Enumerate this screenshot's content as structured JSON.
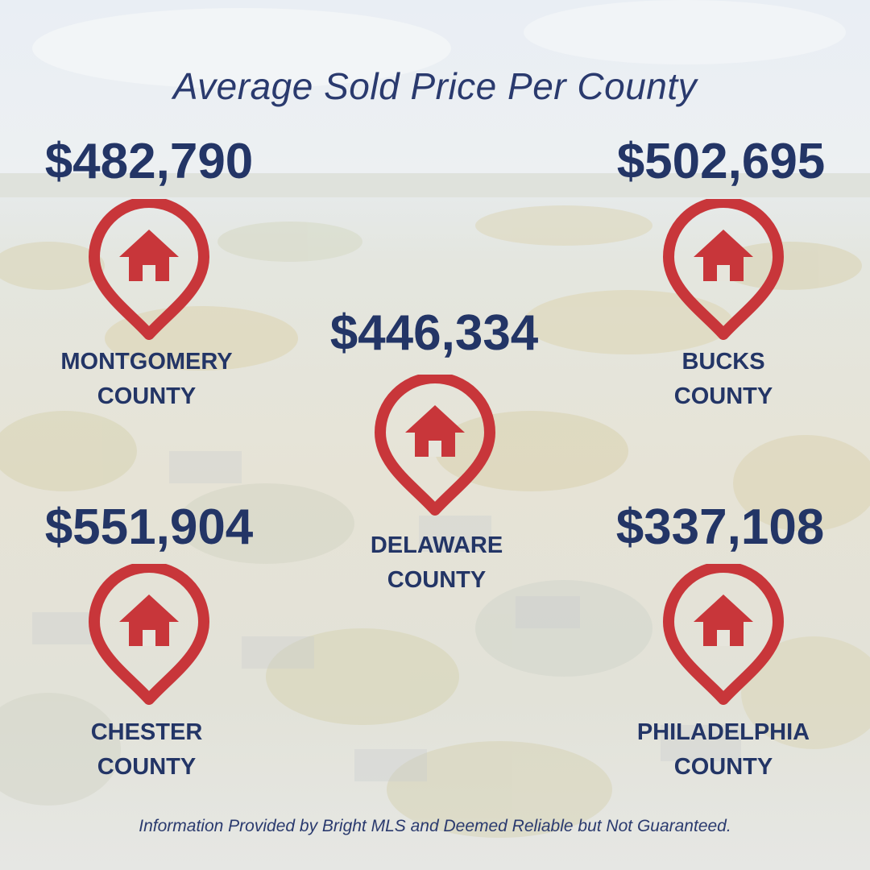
{
  "title": "Average Sold Price Per County",
  "counties": [
    {
      "price": "$482,790",
      "name_line1": "MONTGOMERY",
      "name_line2": "COUNTY"
    },
    {
      "price": "$502,695",
      "name_line1": "BUCKS",
      "name_line2": "COUNTY"
    },
    {
      "price": "$446,334",
      "name_line1": "DELAWARE",
      "name_line2": "COUNTY"
    },
    {
      "price": "$551,904",
      "name_line1": "CHESTER",
      "name_line2": "COUNTY"
    },
    {
      "price": "$337,108",
      "name_line1": "PHILADELPHIA",
      "name_line2": "COUNTY"
    }
  ],
  "footer": "Information Provided by Bright MLS and Deemed Reliable but Not Guaranteed.",
  "colors": {
    "text": "#233566",
    "pin": "#c8363a",
    "background": "#e6e5dc"
  },
  "icons": {
    "pin": "map-pin-icon",
    "house": "house-icon"
  }
}
